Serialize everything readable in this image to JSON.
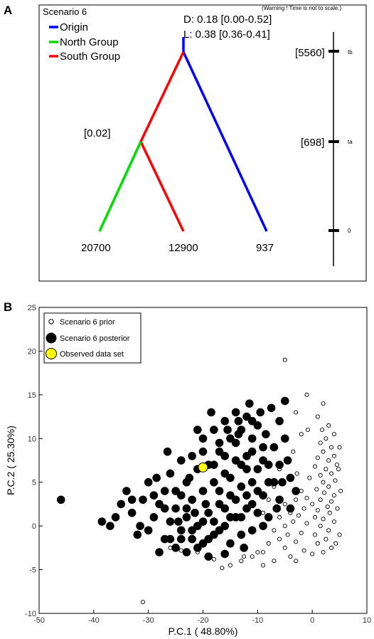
{
  "panel_a": {
    "label": "A",
    "title": "Scenario 6",
    "warning": "(Warning ! Time is not to scale.)",
    "param_d": "D: 0.18 [0.00-0.52]",
    "param_l": "L: 0.38 [0.36-0.41]",
    "admixture_rate": "[0.02]",
    "legend": [
      {
        "label": "Origin",
        "color": "#0000ff"
      },
      {
        "label": "North Group",
        "color": "#00dd00"
      },
      {
        "label": "South Group",
        "color": "#ff0000"
      }
    ],
    "leaf_sizes": [
      "20700",
      "12900",
      "937"
    ],
    "time_axis": [
      {
        "value": "[5560]",
        "tick": "tb"
      },
      {
        "value": "[698]",
        "tick": "ta"
      },
      {
        "value": "",
        "tick": "0"
      }
    ]
  },
  "panel_b": {
    "label": "B",
    "legend": [
      {
        "label": "Scenario 6 prior",
        "style": "small-open"
      },
      {
        "label": "Scenario 6 posterior",
        "style": "large-filled-black"
      },
      {
        "label": "Observed data set",
        "style": "large-filled-yellow"
      }
    ]
  },
  "chart_data": {
    "type": "scatter",
    "xlabel": "P.C.1 (   48.80%)",
    "ylabel": "P.C.2 (   25.30%)",
    "xlim": [
      -50,
      10
    ],
    "ylim": [
      -10,
      25
    ],
    "xticks": [
      -50,
      -40,
      -30,
      -20,
      -10,
      0,
      10
    ],
    "yticks": [
      -10,
      -5,
      0,
      5,
      10,
      15,
      20,
      25
    ],
    "grid": false,
    "legend_position": "top-left",
    "series": [
      {
        "name": "Scenario 6 prior",
        "marker": "open-circle-small",
        "points": [
          [
            -5,
            19
          ],
          [
            -1,
            15
          ],
          [
            2,
            14
          ],
          [
            -3,
            13
          ],
          [
            1,
            12.5
          ],
          [
            3,
            11.5
          ],
          [
            4,
            10.5
          ],
          [
            2.5,
            10
          ],
          [
            3.5,
            9
          ],
          [
            1.5,
            9.5
          ],
          [
            4,
            8
          ],
          [
            2,
            8.5
          ],
          [
            3,
            7.5
          ],
          [
            1,
            7.8
          ],
          [
            4.5,
            7
          ],
          [
            2.5,
            6.5
          ],
          [
            0.5,
            6.8
          ],
          [
            3.5,
            6
          ],
          [
            1.5,
            5.8
          ],
          [
            4.2,
            5.2
          ],
          [
            2,
            5
          ],
          [
            -0.5,
            5.5
          ],
          [
            3,
            4.5
          ],
          [
            0.8,
            4.2
          ],
          [
            -2,
            4
          ],
          [
            2.2,
            3.8
          ],
          [
            4,
            3.5
          ],
          [
            -1,
            3.2
          ],
          [
            1.5,
            3
          ],
          [
            -3,
            3
          ],
          [
            3.5,
            2.8
          ],
          [
            0,
            2.5
          ],
          [
            -5,
            2.5
          ],
          [
            2.8,
            2.2
          ],
          [
            -1.5,
            2
          ],
          [
            1,
            1.8
          ],
          [
            -4,
            1.5
          ],
          [
            3.2,
            1.5
          ],
          [
            -2.5,
            1.2
          ],
          [
            0.5,
            1
          ],
          [
            -6,
            1
          ],
          [
            2,
            0.8
          ],
          [
            -3.5,
            0.5
          ],
          [
            4,
            0.5
          ],
          [
            -1,
            0.3
          ],
          [
            -5,
            0
          ],
          [
            1.5,
            0
          ],
          [
            -7,
            -0.5
          ],
          [
            3,
            -0.5
          ],
          [
            -2,
            -0.8
          ],
          [
            -4.5,
            -1
          ],
          [
            0.5,
            -1
          ],
          [
            -6,
            -1.5
          ],
          [
            2.5,
            -1.5
          ],
          [
            -3,
            -1.8
          ],
          [
            -8,
            -2
          ],
          [
            1,
            -2
          ],
          [
            -5,
            -2.5
          ],
          [
            3.5,
            -2.5
          ],
          [
            -1.5,
            -2.8
          ],
          [
            -9,
            -3
          ],
          [
            2,
            -3
          ],
          [
            -4,
            -3.5
          ],
          [
            -11,
            -3.5
          ],
          [
            0,
            -3.2
          ],
          [
            -7,
            -4
          ],
          [
            -13,
            -4
          ],
          [
            -15,
            -4.5
          ],
          [
            -16.5,
            -4.8
          ],
          [
            -9,
            -4.5
          ],
          [
            -3,
            -4
          ],
          [
            -18,
            -3.8
          ],
          [
            -21,
            -3
          ],
          [
            -24,
            -2.8
          ],
          [
            -26,
            -2.5
          ],
          [
            -10,
            -3
          ],
          [
            -12.5,
            -3.5
          ],
          [
            -31,
            -8.7
          ],
          [
            5,
            9
          ],
          [
            4.8,
            6.5
          ],
          [
            5.2,
            4
          ],
          [
            4.6,
            2
          ],
          [
            5,
            -1
          ],
          [
            4.3,
            -2
          ],
          [
            -0.8,
            11
          ],
          [
            -2,
            10.5
          ],
          [
            -3.5,
            8.5
          ],
          [
            -6,
            6.5
          ],
          [
            -7,
            4.5
          ],
          [
            -8,
            3
          ],
          [
            -9,
            1.5
          ],
          [
            -2.8,
            6
          ],
          [
            1.8,
            11
          ]
        ]
      },
      {
        "name": "Scenario 6 posterior",
        "marker": "filled-circle-large",
        "points": [
          [
            -46,
            3
          ],
          [
            -38.5,
            0.5
          ],
          [
            -36,
            1
          ],
          [
            -34,
            4
          ],
          [
            -33,
            1.5
          ],
          [
            -32,
            -1
          ],
          [
            -31,
            3
          ],
          [
            -30,
            -0.5
          ],
          [
            -30,
            5
          ],
          [
            -29,
            1
          ],
          [
            -28,
            -3
          ],
          [
            -28,
            2.5
          ],
          [
            -27,
            4
          ],
          [
            -27,
            -1.5
          ],
          [
            -26,
            0.5
          ],
          [
            -26,
            6
          ],
          [
            -25,
            2
          ],
          [
            -25,
            -2.5
          ],
          [
            -24,
            3.5
          ],
          [
            -24,
            -0.5
          ],
          [
            -23,
            5
          ],
          [
            -23,
            1
          ],
          [
            -22,
            8
          ],
          [
            -22,
            -1.5
          ],
          [
            -22,
            3
          ],
          [
            -21,
            6.5
          ],
          [
            -21,
            0
          ],
          [
            -20,
            10
          ],
          [
            -20,
            4
          ],
          [
            -20,
            -2
          ],
          [
            -19,
            7
          ],
          [
            -19,
            1.5
          ],
          [
            -18,
            11
          ],
          [
            -18,
            5
          ],
          [
            -18,
            -1
          ],
          [
            -17,
            8.5
          ],
          [
            -17,
            2.5
          ],
          [
            -16,
            12
          ],
          [
            -16,
            6
          ],
          [
            -16,
            0
          ],
          [
            -15,
            10
          ],
          [
            -15,
            3.5
          ],
          [
            -15,
            -2
          ],
          [
            -14,
            13
          ],
          [
            -14,
            7.5
          ],
          [
            -14,
            1
          ],
          [
            -13,
            11
          ],
          [
            -13,
            4.5
          ],
          [
            -13,
            -1
          ],
          [
            -12,
            12.5
          ],
          [
            -12,
            8
          ],
          [
            -12,
            2
          ],
          [
            -11,
            10
          ],
          [
            -11,
            5
          ],
          [
            -11,
            -0.5
          ],
          [
            -10,
            11.5
          ],
          [
            -10,
            6.5
          ],
          [
            -10,
            1.5
          ],
          [
            -9,
            9
          ],
          [
            -9,
            3.5
          ],
          [
            -8,
            7
          ],
          [
            -8,
            1
          ],
          [
            -7,
            5
          ],
          [
            -6,
            3
          ],
          [
            -5,
            14.3
          ],
          [
            -5,
            10
          ],
          [
            -4.5,
            7.5
          ],
          [
            -4,
            5.5
          ],
          [
            -4,
            2
          ],
          [
            -3,
            4
          ],
          [
            -6,
            12
          ],
          [
            -7.5,
            13.5
          ],
          [
            -9.5,
            13
          ],
          [
            -11.5,
            14
          ],
          [
            -13.5,
            12
          ],
          [
            -24,
            7.5
          ],
          [
            -26.5,
            8.5
          ],
          [
            -21,
            11
          ],
          [
            -18.5,
            13
          ],
          [
            -23,
            -3
          ],
          [
            -19,
            -3.5
          ],
          [
            -16,
            -3.2
          ],
          [
            -12.5,
            -2.5
          ],
          [
            -20,
            8.5
          ],
          [
            -17,
            9.5
          ],
          [
            -14,
            9.5
          ],
          [
            -12,
            6.5
          ],
          [
            -15,
            5.5
          ],
          [
            -17,
            4
          ],
          [
            -19.5,
            2.5
          ],
          [
            -21.5,
            1.5
          ],
          [
            -22.5,
            5.5
          ],
          [
            -18,
            7
          ],
          [
            -16,
            8
          ],
          [
            -13,
            7
          ],
          [
            -11,
            8.5
          ],
          [
            -9,
            7.5
          ],
          [
            -8,
            5
          ],
          [
            -10,
            4
          ],
          [
            -12,
            3.5
          ],
          [
            -14,
            3
          ],
          [
            -16,
            2
          ],
          [
            -18,
            0.5
          ],
          [
            -20,
            0.5
          ],
          [
            -23,
            2
          ],
          [
            -25,
            4
          ],
          [
            -27,
            2
          ],
          [
            -29,
            3.5
          ],
          [
            -33,
            3
          ],
          [
            -35,
            2.5
          ],
          [
            -37,
            0
          ],
          [
            -31.5,
            0
          ],
          [
            -28.5,
            5.5
          ],
          [
            -26,
            -1.5
          ],
          [
            -24.5,
            0.5
          ],
          [
            -22,
            -0.5
          ],
          [
            -15.5,
            11
          ],
          [
            -13.5,
            10.5
          ],
          [
            -11,
            12
          ],
          [
            -8.5,
            10.5
          ],
          [
            -7,
            9
          ],
          [
            -6,
            7
          ],
          [
            -5.5,
            5
          ],
          [
            -6.5,
            2
          ],
          [
            -9,
            0
          ],
          [
            -11,
            2.5
          ],
          [
            -13,
            1
          ],
          [
            -15,
            1
          ],
          [
            -17,
            -0.5
          ],
          [
            -19,
            -1.5
          ],
          [
            -21,
            -2.5
          ],
          [
            -24,
            -1.5
          ]
        ]
      },
      {
        "name": "Observed data set",
        "marker": "filled-circle-yellow",
        "points": [
          [
            -20,
            6.7
          ]
        ]
      }
    ]
  }
}
